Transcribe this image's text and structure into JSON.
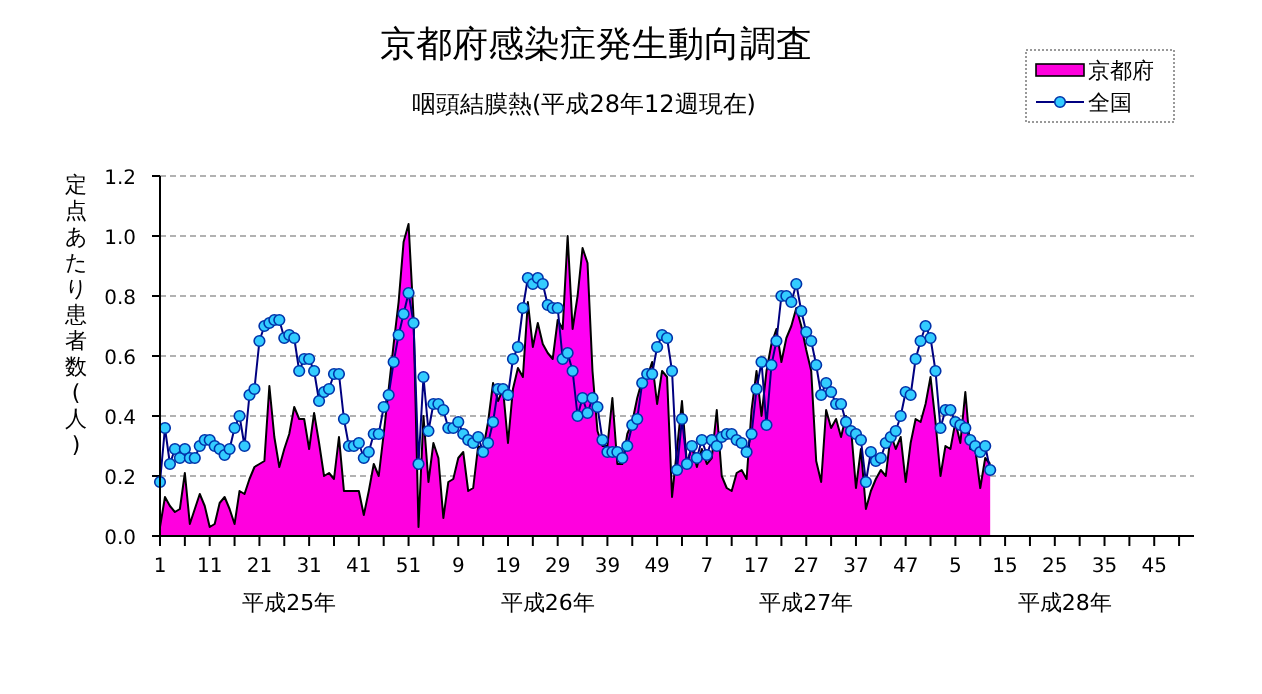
{
  "chart_data": {
    "type": "area",
    "title": "京都府感染症発生動向調査",
    "subtitle": "咽頭結膜熱(平成28年12週現在)",
    "ylabel": "定点あたり患者数(人)",
    "annotations": [
      "平成25年",
      "平成26年",
      "平成27年",
      "平成28年"
    ],
    "categories": [
      "1",
      null,
      null,
      null,
      null,
      null,
      null,
      null,
      null,
      null,
      "11",
      null,
      null,
      null,
      null,
      null,
      null,
      null,
      null,
      null,
      "21",
      null,
      null,
      null,
      null,
      null,
      null,
      null,
      null,
      null,
      "31",
      null,
      null,
      null,
      null,
      null,
      null,
      null,
      null,
      null,
      "41",
      null,
      null,
      null,
      null,
      null,
      null,
      null,
      null,
      null,
      "51",
      null,
      null,
      null,
      null,
      null,
      null,
      null,
      null,
      null,
      "9",
      null,
      null,
      null,
      null,
      null,
      null,
      null,
      null,
      null,
      "19",
      null,
      null,
      null,
      null,
      null,
      null,
      null,
      null,
      null,
      "29",
      null,
      null,
      null,
      null,
      null,
      null,
      null,
      null,
      null,
      "39",
      null,
      null,
      null,
      null,
      null,
      null,
      null,
      null,
      null,
      "49",
      null,
      null,
      null,
      null,
      null,
      null,
      null,
      null,
      null,
      "7",
      null,
      null,
      null,
      null,
      null,
      null,
      null,
      null,
      null,
      "17",
      null,
      null,
      null,
      null,
      null,
      null,
      null,
      null,
      null,
      "27",
      null,
      null,
      null,
      null,
      null,
      null,
      null,
      null,
      null,
      "37",
      null,
      null,
      null,
      null,
      null,
      null,
      null,
      null,
      null,
      "47",
      null,
      null,
      null,
      null,
      null,
      null,
      null,
      null,
      null,
      "5",
      null,
      null,
      null,
      null,
      null,
      null,
      null,
      null,
      null,
      "15",
      null,
      null,
      null,
      null,
      null,
      null,
      null,
      null,
      null,
      "25",
      null,
      null,
      null,
      null,
      null,
      null,
      null,
      null,
      null,
      "35",
      null,
      null,
      null,
      null,
      null,
      null,
      null,
      null,
      null,
      "45",
      null,
      null,
      null,
      null,
      null,
      null,
      null
    ],
    "ylim": [
      0,
      1.2
    ],
    "yticks": [
      {
        "value": 0,
        "label": "0.0"
      },
      {
        "value": 0.2,
        "label": "0.2"
      },
      {
        "value": 0.4,
        "label": "0.4"
      },
      {
        "value": 0.6,
        "label": "0.6"
      },
      {
        "value": 0.8,
        "label": "0.8"
      },
      {
        "value": 1,
        "label": "1.0"
      },
      {
        "value": 1.2,
        "label": "1.2"
      }
    ],
    "grid": "y",
    "legend": "top right",
    "series": [
      {
        "name": "京都府",
        "color": "#ff00dd",
        "values": [
          0.03,
          0.13,
          0.1,
          0.08,
          0.09,
          0.21,
          0.04,
          0.09,
          0.14,
          0.1,
          0.03,
          0.04,
          0.11,
          0.13,
          0.09,
          0.04,
          0.15,
          0.14,
          0.19,
          0.23,
          0.24,
          0.25,
          0.5,
          0.33,
          0.23,
          0.29,
          0.34,
          0.43,
          0.39,
          0.39,
          0.29,
          0.41,
          0.31,
          0.2,
          0.21,
          0.19,
          0.33,
          0.15,
          0.15,
          0.15,
          0.15,
          0.07,
          0.15,
          0.24,
          0.2,
          0.34,
          0.49,
          0.64,
          0.78,
          0.98,
          1.04,
          0.73,
          0.03,
          0.4,
          0.18,
          0.31,
          0.26,
          0.06,
          0.18,
          0.19,
          0.26,
          0.28,
          0.15,
          0.16,
          0.3,
          0.29,
          0.38,
          0.51,
          0.45,
          0.49,
          0.31,
          0.49,
          0.56,
          0.53,
          0.78,
          0.63,
          0.71,
          0.64,
          0.61,
          0.59,
          0.72,
          0.69,
          1.0,
          0.69,
          0.8,
          0.96,
          0.91,
          0.55,
          0.35,
          0.3,
          0.3,
          0.46,
          0.24,
          0.24,
          0.34,
          0.38,
          0.46,
          0.52,
          0.53,
          0.58,
          0.44,
          0.55,
          0.53,
          0.13,
          0.29,
          0.45,
          0.24,
          0.3,
          0.23,
          0.29,
          0.24,
          0.26,
          0.42,
          0.2,
          0.16,
          0.15,
          0.21,
          0.22,
          0.19,
          0.42,
          0.55,
          0.4,
          0.55,
          0.64,
          0.69,
          0.58,
          0.66,
          0.7,
          0.76,
          0.7,
          0.62,
          0.55,
          0.25,
          0.18,
          0.42,
          0.36,
          0.39,
          0.33,
          0.4,
          0.36,
          0.16,
          0.29,
          0.09,
          0.15,
          0.19,
          0.22,
          0.2,
          0.34,
          0.29,
          0.33,
          0.18,
          0.31,
          0.39,
          0.38,
          0.44,
          0.53,
          0.38,
          0.2,
          0.3,
          0.29,
          0.38,
          0.31,
          0.48,
          0.29,
          0.29,
          0.16,
          0.26,
          0.24,
          null,
          null,
          null,
          null,
          null,
          null,
          null,
          null,
          null,
          null,
          null,
          null,
          null,
          null,
          null,
          null,
          null,
          null,
          null,
          null,
          null,
          null,
          null,
          null,
          null,
          null,
          null,
          null,
          null,
          null,
          null,
          null,
          null,
          null,
          null,
          null,
          null,
          null,
          null,
          null
        ]
      },
      {
        "name": "全国",
        "type": "line",
        "marker": "circle",
        "color": "#33ccff",
        "values": [
          0.18,
          0.36,
          0.24,
          0.29,
          0.26,
          0.29,
          0.26,
          0.26,
          0.3,
          0.32,
          0.32,
          0.3,
          0.29,
          0.27,
          0.29,
          0.36,
          0.4,
          0.3,
          0.47,
          0.49,
          0.65,
          0.7,
          0.71,
          0.72,
          0.72,
          0.66,
          0.67,
          0.66,
          0.55,
          0.59,
          0.59,
          0.55,
          0.45,
          0.48,
          0.49,
          0.54,
          0.54,
          0.39,
          0.3,
          0.3,
          0.31,
          0.26,
          0.28,
          0.34,
          0.34,
          0.43,
          0.47,
          0.58,
          0.67,
          0.74,
          0.81,
          0.71,
          0.24,
          0.53,
          0.35,
          0.44,
          0.44,
          0.42,
          0.36,
          0.36,
          0.38,
          0.34,
          0.32,
          0.31,
          0.33,
          0.28,
          0.31,
          0.38,
          0.49,
          0.49,
          0.47,
          0.59,
          0.63,
          0.76,
          0.86,
          0.84,
          0.86,
          0.84,
          0.77,
          0.76,
          0.76,
          0.59,
          0.61,
          0.55,
          0.4,
          0.46,
          0.41,
          0.46,
          0.43,
          0.32,
          0.28,
          0.28,
          0.28,
          0.26,
          0.3,
          0.37,
          0.39,
          0.51,
          0.54,
          0.54,
          0.63,
          0.67,
          0.66,
          0.55,
          0.22,
          0.39,
          0.24,
          0.3,
          0.26,
          0.32,
          0.27,
          0.32,
          0.3,
          0.33,
          0.34,
          0.34,
          0.32,
          0.31,
          0.28,
          0.34,
          0.49,
          0.58,
          0.37,
          0.57,
          0.65,
          0.8,
          0.8,
          0.78,
          0.84,
          0.75,
          0.68,
          0.65,
          0.57,
          0.47,
          0.51,
          0.48,
          0.44,
          0.44,
          0.38,
          0.35,
          0.34,
          0.32,
          0.18,
          0.28,
          0.25,
          0.26,
          0.31,
          0.33,
          0.35,
          0.4,
          0.48,
          0.47,
          0.59,
          0.65,
          0.7,
          0.66,
          0.55,
          0.36,
          0.42,
          0.42,
          0.38,
          0.37,
          0.36,
          0.32,
          0.3,
          0.28,
          0.3,
          0.22,
          null,
          null,
          null,
          null,
          null,
          null,
          null,
          null,
          null,
          null,
          null,
          null,
          null,
          null,
          null,
          null,
          null,
          null,
          null,
          null,
          null,
          null,
          null,
          null,
          null,
          null,
          null,
          null,
          null,
          null,
          null,
          null,
          null,
          null,
          null,
          null,
          null,
          null,
          null,
          null
        ]
      }
    ]
  }
}
